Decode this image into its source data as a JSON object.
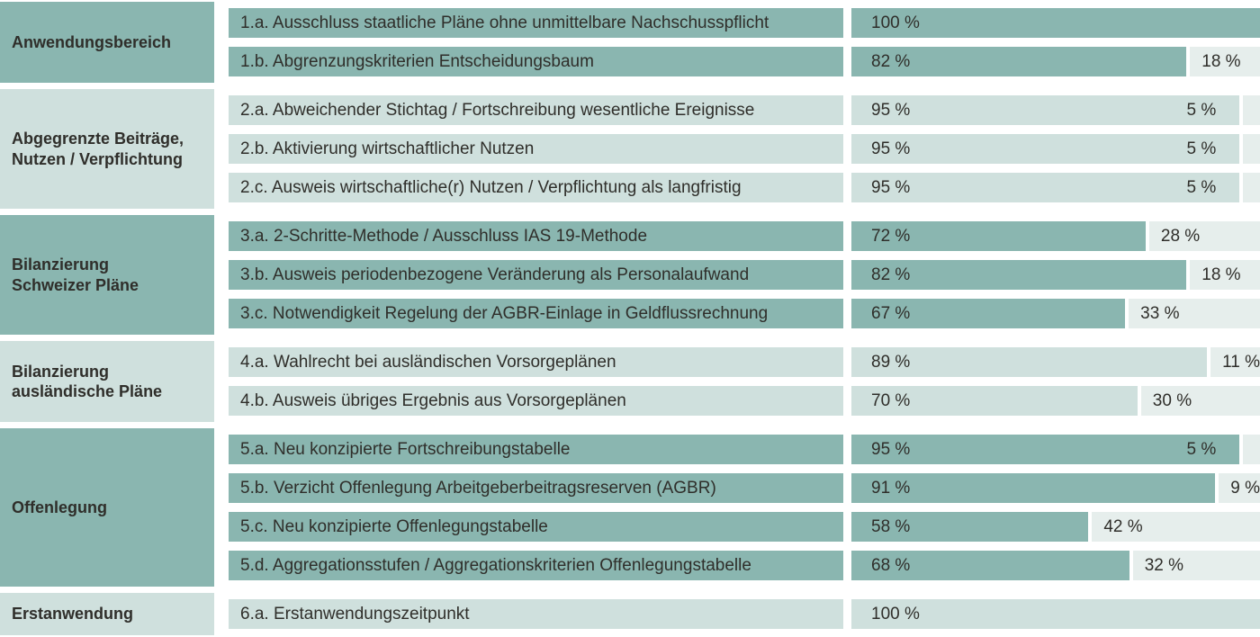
{
  "colors": {
    "dark_teal": "#8ab6b0",
    "light_teal": "#cfe0dd",
    "remainder": "#e6eeec",
    "text": "#2f2e2a",
    "background": "#ffffff"
  },
  "unit_suffix": " %",
  "chart_data": {
    "type": "bar",
    "orientation": "horizontal",
    "stacked": true,
    "unit": "%",
    "xlim": [
      0,
      100
    ],
    "grid": false,
    "legend": false,
    "groups": [
      {
        "category_lines": [
          "Anwendungsbereich"
        ],
        "tone": "dark",
        "items": [
          {
            "label": "1.a. Ausschluss staatliche Pläne ohne unmittelbare Nachschusspflicht",
            "primary": 100,
            "secondary": 0
          },
          {
            "label": "1.b. Abgrenzungskriterien Entscheidungsbaum",
            "primary": 82,
            "secondary": 18
          }
        ]
      },
      {
        "category_lines": [
          "Abgegrenzte Beiträge,",
          "Nutzen / Verpflichtung"
        ],
        "tone": "light",
        "items": [
          {
            "label": "2.a. Abweichender Stichtag / Fortschreibung wesentliche Ereignisse",
            "primary": 95,
            "secondary": 5
          },
          {
            "label": "2.b. Aktivierung wirtschaftlicher Nutzen",
            "primary": 95,
            "secondary": 5
          },
          {
            "label": "2.c. Ausweis wirtschaftliche(r) Nutzen / Verpflichtung als langfristig",
            "primary": 95,
            "secondary": 5
          }
        ]
      },
      {
        "category_lines": [
          "Bilanzierung",
          "Schweizer Pläne"
        ],
        "tone": "dark",
        "items": [
          {
            "label": "3.a. 2-Schritte-Methode / Ausschluss IAS 19-Methode",
            "primary": 72,
            "secondary": 28
          },
          {
            "label": "3.b. Ausweis periodenbezogene Veränderung als Personalaufwand",
            "primary": 82,
            "secondary": 18
          },
          {
            "label": "3.c. Notwendigkeit Regelung der AGBR-Einlage in Geldflussrechnung",
            "primary": 67,
            "secondary": 33
          }
        ]
      },
      {
        "category_lines": [
          "Bilanzierung",
          "ausländische Pläne"
        ],
        "tone": "light",
        "items": [
          {
            "label": "4.a. Wahlrecht bei ausländischen Vorsorgeplänen",
            "primary": 89,
            "secondary": 11
          },
          {
            "label": "4.b. Ausweis übriges Ergebnis aus Vorsorgeplänen",
            "primary": 70,
            "secondary": 30
          }
        ]
      },
      {
        "category_lines": [
          "Offenlegung"
        ],
        "tone": "dark",
        "items": [
          {
            "label": "5.a. Neu konzipierte Fortschreibungstabelle",
            "primary": 95,
            "secondary": 5
          },
          {
            "label": "5.b. Verzicht Offenlegung Arbeitgeberbeitragsreserven (AGBR)",
            "primary": 91,
            "secondary": 9
          },
          {
            "label": "5.c. Neu konzipierte Offenlegungstabelle",
            "primary": 58,
            "secondary": 42
          },
          {
            "label": "5.d. Aggregationsstufen / Aggregationskriterien Offenlegungstabelle",
            "primary": 68,
            "secondary": 32
          }
        ]
      },
      {
        "category_lines": [
          "Erstanwendung"
        ],
        "tone": "light",
        "items": [
          {
            "label": "6.a. Erstanwendungszeitpunkt",
            "primary": 100,
            "secondary": 0
          }
        ]
      }
    ]
  }
}
